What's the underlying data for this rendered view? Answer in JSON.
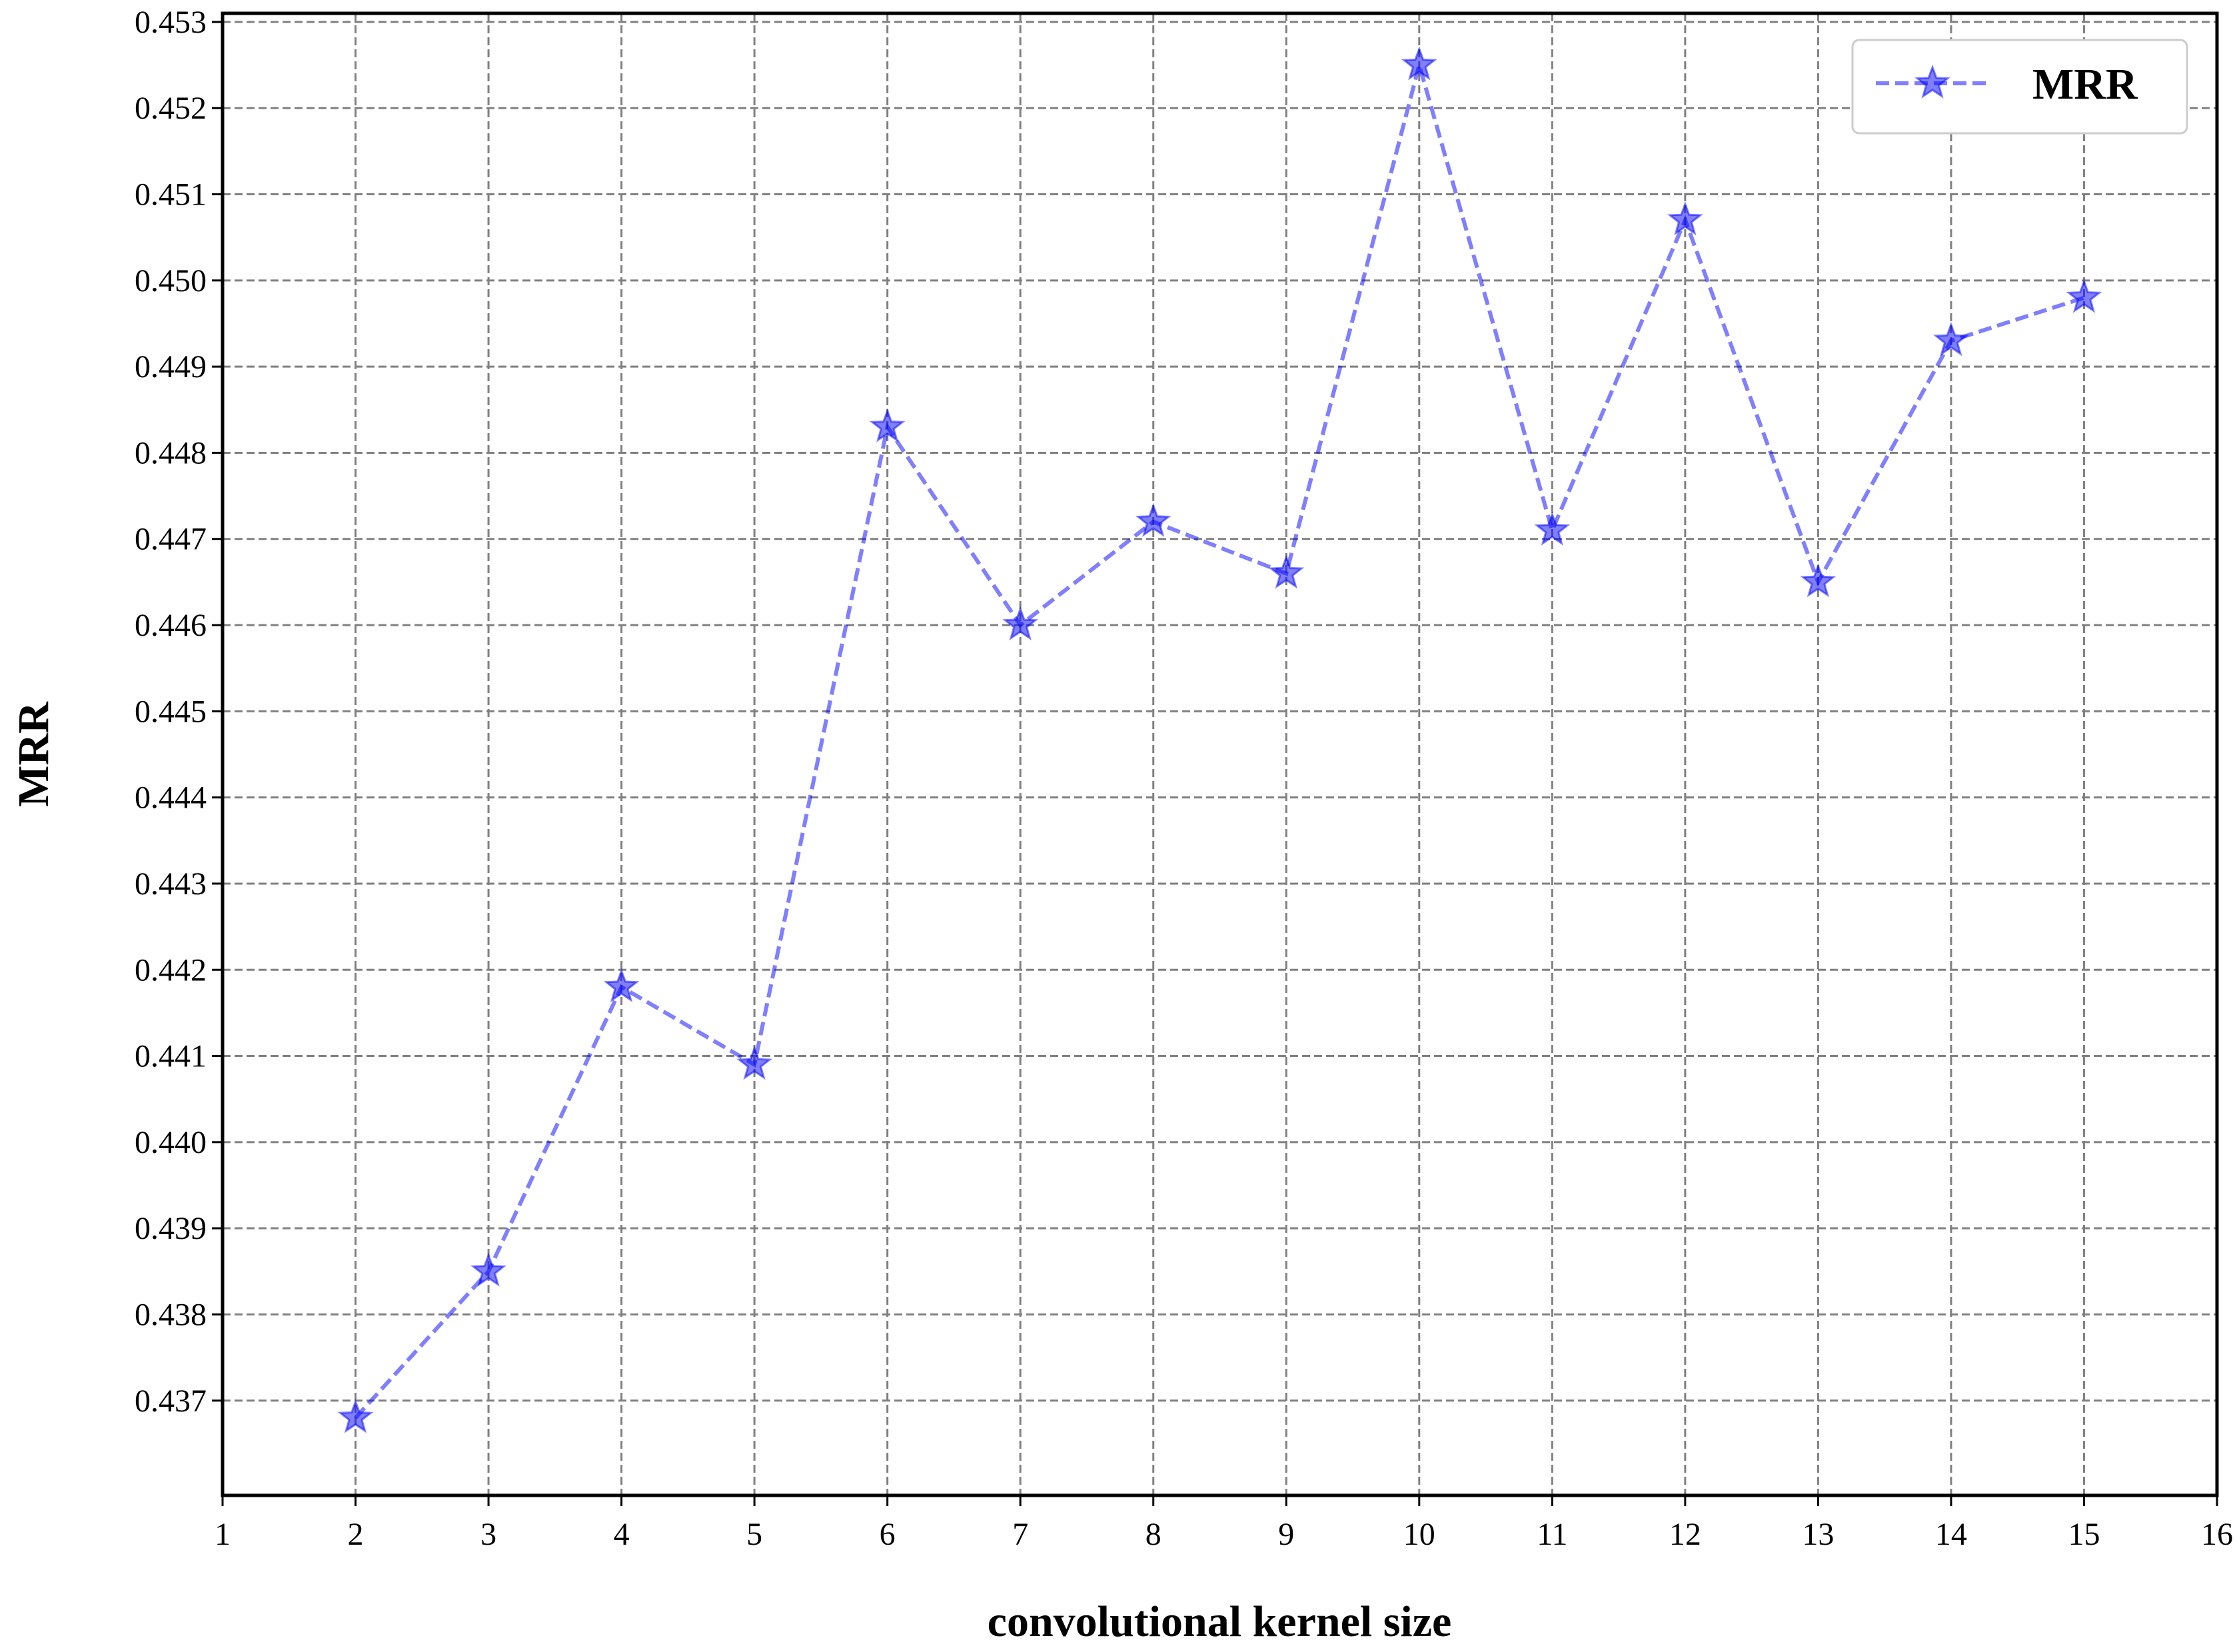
{
  "chart_data": {
    "type": "line",
    "xlabel": "convolutional kernel size",
    "ylabel": "MRR",
    "xlim": [
      1,
      16
    ],
    "ylim": [
      0.4359,
      0.4531
    ],
    "xticks": [
      1,
      2,
      3,
      4,
      5,
      6,
      7,
      8,
      9,
      10,
      11,
      12,
      13,
      14,
      15,
      16
    ],
    "yticks": [
      "0.437",
      "0.438",
      "0.439",
      "0.440",
      "0.441",
      "0.442",
      "0.443",
      "0.444",
      "0.445",
      "0.446",
      "0.447",
      "0.448",
      "0.449",
      "0.450",
      "0.451",
      "0.452",
      "0.453"
    ],
    "grid": true,
    "legend_position": "top-right",
    "series": [
      {
        "name": "MRR",
        "color": "#0000ff",
        "line_style": "dashed",
        "marker": "star",
        "x": [
          2,
          3,
          4,
          5,
          6,
          7,
          8,
          9,
          10,
          11,
          12,
          13,
          14,
          15
        ],
        "values": [
          0.4368,
          0.4385,
          0.4418,
          0.4409,
          0.4483,
          0.446,
          0.4472,
          0.4466,
          0.4525,
          0.4471,
          0.4507,
          0.4465,
          0.4493,
          0.4498
        ]
      }
    ]
  }
}
